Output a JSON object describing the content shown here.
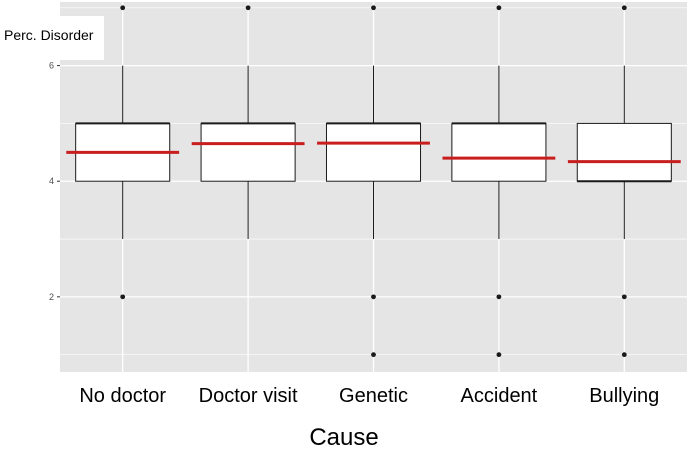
{
  "chart_data": {
    "type": "box",
    "ylabel": "Perc. Disorder",
    "xlabel": "Cause",
    "ylim": [
      0.7,
      7.1
    ],
    "yticks": [
      2,
      4,
      6
    ],
    "ytick_labels": [
      "2",
      "4",
      "6"
    ],
    "grid": true,
    "categories": [
      "No doctor",
      "Doctor visit",
      "Genetic",
      "Accident",
      "Bullying"
    ],
    "boxes": [
      {
        "category": "No doctor",
        "whisker_low": 3,
        "q1": 4,
        "median": 5,
        "q3": 5,
        "whisker_high": 6,
        "mean": 4.5,
        "outliers": [
          2,
          7
        ]
      },
      {
        "category": "Doctor visit",
        "whisker_low": 3,
        "q1": 4,
        "median": 5,
        "q3": 5,
        "whisker_high": 6,
        "mean": 4.65,
        "outliers": [
          7
        ]
      },
      {
        "category": "Genetic",
        "whisker_low": 3,
        "q1": 4,
        "median": 5,
        "q3": 5,
        "whisker_high": 6,
        "mean": 4.66,
        "outliers": [
          1,
          2,
          7
        ]
      },
      {
        "category": "Accident",
        "whisker_low": 3,
        "q1": 4,
        "median": 5,
        "q3": 5,
        "whisker_high": 6,
        "mean": 4.4,
        "outliers": [
          1,
          2,
          7
        ]
      },
      {
        "category": "Bullying",
        "whisker_low": 3,
        "q1": 4,
        "median": 4,
        "q3": 5,
        "whisker_high": 6,
        "mean": 4.34,
        "outliers": [
          1,
          2,
          7
        ]
      }
    ],
    "colors": {
      "panel": "#e5e5e5",
      "grid": "#ffffff",
      "box_fill": "#ffffff",
      "box_line": "#1a1a1a",
      "mean_line": "#c81e1e"
    }
  }
}
